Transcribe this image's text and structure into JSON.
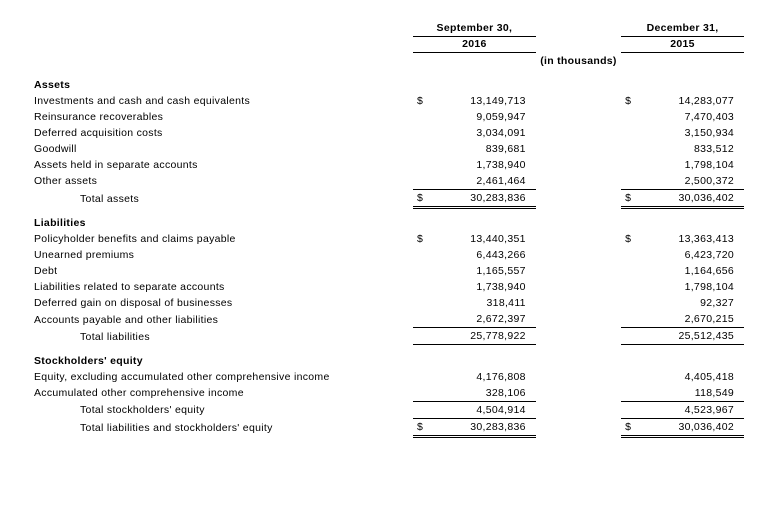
{
  "header": {
    "date1": "September 30,",
    "year1": "2016",
    "date2": "December 31,",
    "year2": "2015",
    "unit": "(in thousands)"
  },
  "assets": {
    "title": "Assets",
    "rows": [
      {
        "label": "Investments and cash and cash equivalents",
        "v1": "13,149,713",
        "v2": "14,283,077",
        "cur": true
      },
      {
        "label": "Reinsurance recoverables",
        "v1": "9,059,947",
        "v2": "7,470,403"
      },
      {
        "label": "Deferred acquisition costs",
        "v1": "3,034,091",
        "v2": "3,150,934"
      },
      {
        "label": "Goodwill",
        "v1": "839,681",
        "v2": "833,512"
      },
      {
        "label": "Assets held in separate accounts",
        "v1": "1,738,940",
        "v2": "1,798,104"
      },
      {
        "label": "Other assets",
        "v1": "2,461,464",
        "v2": "2,500,372"
      }
    ],
    "total": {
      "label": "Total assets",
      "v1": "30,283,836",
      "v2": "30,036,402"
    }
  },
  "liab": {
    "title": "Liabilities",
    "rows": [
      {
        "label": "Policyholder benefits and claims payable",
        "v1": "13,440,351",
        "v2": "13,363,413",
        "cur": true
      },
      {
        "label": "Unearned premiums",
        "v1": "6,443,266",
        "v2": "6,423,720"
      },
      {
        "label": "Debt",
        "v1": "1,165,557",
        "v2": "1,164,656"
      },
      {
        "label": "Liabilities related to separate accounts",
        "v1": "1,738,940",
        "v2": "1,798,104"
      },
      {
        "label": "Deferred gain on disposal of businesses",
        "v1": "318,411",
        "v2": "92,327"
      },
      {
        "label": "Accounts payable and other liabilities",
        "v1": "2,672,397",
        "v2": "2,670,215"
      }
    ],
    "total": {
      "label": "Total liabilities",
      "v1": "25,778,922",
      "v2": "25,512,435"
    }
  },
  "eq": {
    "title": "Stockholders' equity",
    "rows": [
      {
        "label": "Equity, excluding accumulated other comprehensive income",
        "v1": "4,176,808",
        "v2": "4,405,418"
      },
      {
        "label": "Accumulated other comprehensive income",
        "v1": "328,106",
        "v2": "118,549"
      }
    ],
    "sub": {
      "label": "Total stockholders' equity",
      "v1": "4,504,914",
      "v2": "4,523,967"
    },
    "grand": {
      "label": "Total liabilities and stockholders' equity",
      "v1": "30,283,836",
      "v2": "30,036,402"
    }
  },
  "sym": "$"
}
